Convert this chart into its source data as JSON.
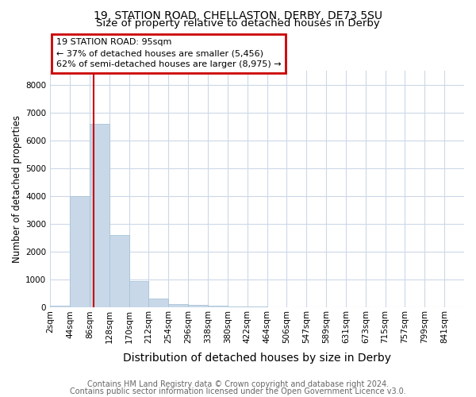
{
  "title1": "19, STATION ROAD, CHELLASTON, DERBY, DE73 5SU",
  "title2": "Size of property relative to detached houses in Derby",
  "xlabel": "Distribution of detached houses by size in Derby",
  "ylabel": "Number of detached properties",
  "bin_labels": [
    "2sqm",
    "44sqm",
    "86sqm",
    "128sqm",
    "170sqm",
    "212sqm",
    "254sqm",
    "296sqm",
    "338sqm",
    "380sqm",
    "422sqm",
    "464sqm",
    "506sqm",
    "547sqm",
    "589sqm",
    "631sqm",
    "673sqm",
    "715sqm",
    "757sqm",
    "799sqm",
    "841sqm"
  ],
  "bar_heights": [
    80,
    4000,
    6600,
    2600,
    950,
    320,
    120,
    100,
    80,
    50,
    50,
    0,
    0,
    0,
    0,
    0,
    0,
    0,
    0,
    0,
    0
  ],
  "bar_color": "#c8d8e8",
  "bar_edge_color": "#a8c4d8",
  "vline_color": "#cc0000",
  "annotation_line1": "19 STATION ROAD: 95sqm",
  "annotation_line2": "← 37% of detached houses are smaller (5,456)",
  "annotation_line3": "62% of semi-detached houses are larger (8,975) →",
  "annotation_box_color": "#cc0000",
  "ylim": [
    0,
    8500
  ],
  "yticks": [
    0,
    1000,
    2000,
    3000,
    4000,
    5000,
    6000,
    7000,
    8000
  ],
  "footnote1": "Contains HM Land Registry data © Crown copyright and database right 2024.",
  "footnote2": "Contains public sector information licensed under the Open Government Licence v3.0.",
  "bg_color": "#ffffff",
  "grid_color": "#ccd8e8",
  "title1_fontsize": 10,
  "title2_fontsize": 9.5,
  "xlabel_fontsize": 10,
  "ylabel_fontsize": 8.5,
  "tick_fontsize": 7.5,
  "annotation_fontsize": 8,
  "footnote_fontsize": 7
}
